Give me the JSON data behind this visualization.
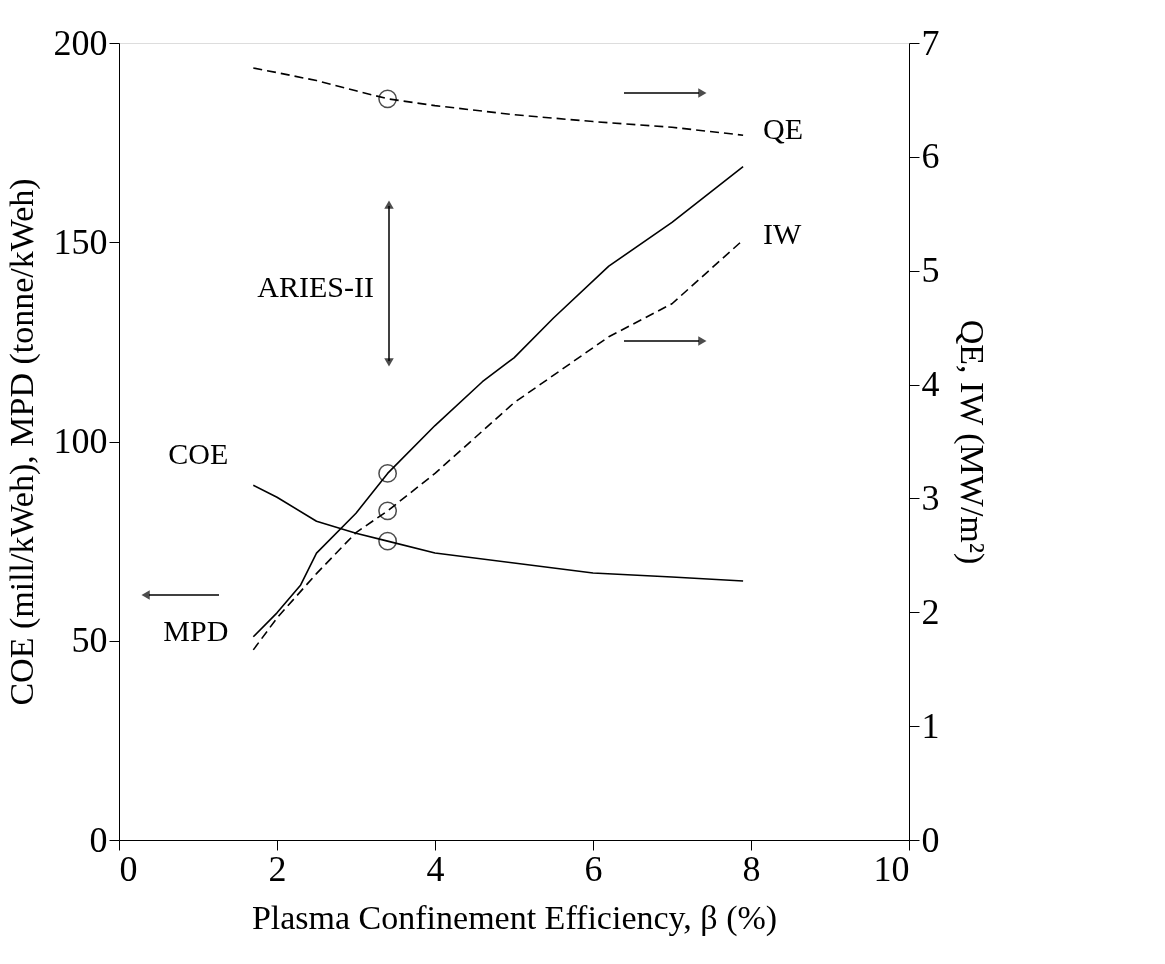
{
  "chart_data": {
    "type": "line",
    "xlabel": "Plasma Confinement Efficiency, β (%)",
    "ylabel": "COE (mill/kWeh), MPD (tonne/kWeh)",
    "y2label": "QE, IW (MW/m²)",
    "xlim": [
      0,
      10
    ],
    "xticks": [
      0,
      2,
      4,
      6,
      8,
      10
    ],
    "ylim": [
      0,
      200
    ],
    "yticks": [
      0,
      50,
      100,
      150,
      200
    ],
    "y2lim": [
      0,
      7
    ],
    "y2ticks": [
      0,
      1,
      2,
      3,
      4,
      5,
      6,
      7
    ],
    "grid": false,
    "marker": "none",
    "annotations": [
      "ARIES-II"
    ],
    "series": [
      {
        "name": "COE",
        "color": "#000000",
        "line_style": "solid",
        "x": [
          1.7,
          2,
          2.5,
          3,
          3.4,
          4,
          5,
          6,
          7,
          7.9
        ],
        "values": [
          89,
          86,
          80,
          77,
          75,
          72,
          69.5,
          67,
          66,
          65
        ]
      },
      {
        "name": "MPD",
        "color": "#000000",
        "line_style": "solid",
        "x": [
          1.7,
          2,
          2.3,
          2.5,
          3,
          3.4,
          4,
          4.6,
          5,
          5.5,
          6.2,
          7,
          7.9
        ],
        "values": [
          51,
          57,
          64,
          72,
          82,
          92,
          104,
          115,
          121,
          131,
          144,
          155,
          169
        ]
      },
      {
        "name": "QE",
        "color": "#000000",
        "line_style": "dashed",
        "axis": "y2",
        "x": [
          1.7,
          2,
          2.5,
          3,
          3.4,
          4,
          5,
          6,
          7,
          7.9
        ],
        "values": [
          6.78,
          6.74,
          6.67,
          6.58,
          6.51,
          6.45,
          6.37,
          6.31,
          6.26,
          6.19
        ]
      },
      {
        "name": "IW",
        "color": "#000000",
        "line_style": "dashed",
        "axis": "y2",
        "x": [
          1.7,
          2,
          2.5,
          3,
          3.4,
          4,
          5,
          6.2,
          7,
          7.9
        ],
        "values": [
          1.67,
          1.95,
          2.34,
          2.7,
          2.89,
          3.22,
          3.84,
          4.42,
          4.71,
          5.27
        ]
      },
      {
        "type": "scatter",
        "marker": "circle",
        "color": "#000000",
        "x": [
          3.4,
          3.4
        ],
        "values": [
          75,
          92
        ]
      },
      {
        "type": "scatter",
        "marker": "circle",
        "color": "#000000",
        "axis": "y2",
        "x": [
          3.4,
          3.4
        ],
        "values": [
          6.51,
          2.89
        ]
      }
    ]
  }
}
